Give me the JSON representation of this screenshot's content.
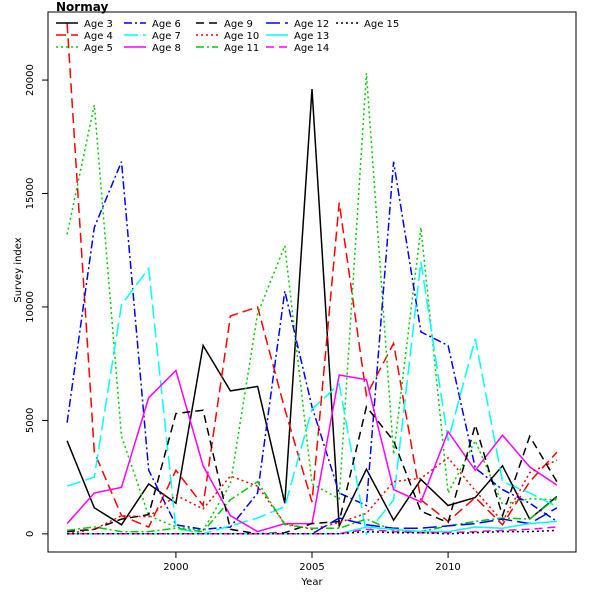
{
  "chart_data": {
    "type": "line",
    "title": "Normay",
    "xlabel": "Year",
    "ylabel": "Survey index",
    "xlim": [
      1995.3,
      2014.7
    ],
    "ylim": [
      -800,
      23000
    ],
    "xticks": [
      2000,
      2005,
      2010
    ],
    "yticks": [
      0,
      5000,
      10000,
      15000,
      20000
    ],
    "grid": false,
    "legend_position": "top-left",
    "x": [
      1996,
      1997,
      1998,
      1999,
      2000,
      2001,
      2002,
      2003,
      2004,
      2005,
      2006,
      2007,
      2008,
      2009,
      2010,
      2011,
      2012,
      2013,
      2014
    ],
    "series": [
      {
        "name": "Age 3",
        "color": "#000000",
        "dash": "",
        "values": [
          4100,
          1150,
          400,
          2200,
          1350,
          8300,
          6300,
          6500,
          1350,
          19600,
          350,
          2850,
          600,
          2400,
          1250,
          1600,
          3000,
          650,
          1650
        ]
      },
      {
        "name": "Age 4",
        "color": "#ff0000",
        "dash": "10,5",
        "values": [
          22500,
          3600,
          800,
          300,
          2800,
          1250,
          9600,
          10000,
          5500,
          1400,
          14600,
          6100,
          8400,
          1500,
          550,
          1600,
          400,
          2300,
          3600
        ]
      },
      {
        "name": "Age 5",
        "color": "#00cd00",
        "dash": "2,3",
        "values": [
          13200,
          18900,
          4300,
          800,
          300,
          150,
          2200,
          9700,
          12700,
          2200,
          1550,
          20300,
          3500,
          13500,
          1800,
          4100,
          1300,
          1550,
          1500
        ]
      },
      {
        "name": "Age 6",
        "color": "#0000ff",
        "dash": "8,3,2,3",
        "values": [
          4900,
          13500,
          16400,
          2800,
          400,
          200,
          300,
          1800,
          10700,
          5600,
          1800,
          1250,
          16400,
          8900,
          8300,
          2900,
          1950,
          1350,
          550
        ]
      },
      {
        "name": "Age 7",
        "color": "#00ffff",
        "dash": "14,5",
        "values": [
          2100,
          2500,
          10100,
          11700,
          250,
          0,
          350,
          700,
          1200,
          5500,
          6600,
          0,
          1500,
          12000,
          4100,
          8600,
          2300,
          1800,
          1200
        ]
      },
      {
        "name": "Age 8",
        "color": "#ff00ff",
        "dash": "",
        "values": [
          450,
          1800,
          2050,
          6000,
          7200,
          3000,
          800,
          100,
          450,
          450,
          7000,
          6800,
          1950,
          1400,
          4500,
          2800,
          4350,
          2950,
          2150
        ]
      },
      {
        "name": "Age 9",
        "color": "#000000",
        "dash": "8,5",
        "values": [
          100,
          200,
          650,
          850,
          5300,
          5450,
          200,
          0,
          50,
          450,
          550,
          5600,
          4100,
          1000,
          500,
          4800,
          800,
          4300,
          2300
        ]
      },
      {
        "name": "Age 10",
        "color": "#ff0000",
        "dash": "2,3",
        "values": [
          0,
          200,
          800,
          750,
          1700,
          1100,
          2550,
          2100,
          450,
          200,
          500,
          900,
          2300,
          2450,
          3350,
          1900,
          550,
          2700,
          3250
        ]
      },
      {
        "name": "Age 11",
        "color": "#00cd00",
        "dash": "8,3,2,3",
        "values": [
          150,
          300,
          100,
          100,
          250,
          100,
          1500,
          2300,
          400,
          250,
          250,
          650,
          150,
          100,
          350,
          550,
          700,
          650,
          1600
        ]
      },
      {
        "name": "Age 12",
        "color": "#0000ff",
        "dash": "14,5",
        "values": [
          0,
          0,
          0,
          0,
          0,
          0,
          0,
          0,
          0,
          0,
          700,
          400,
          250,
          250,
          350,
          450,
          650,
          450,
          1150
        ]
      },
      {
        "name": "Age 13",
        "color": "#00ffff",
        "dash": "",
        "values": [
          0,
          0,
          0,
          0,
          0,
          0,
          0,
          0,
          0,
          0,
          0,
          300,
          200,
          100,
          100,
          300,
          250,
          450,
          550
        ]
      },
      {
        "name": "Age 14",
        "color": "#ff00ff",
        "dash": "8,5",
        "values": [
          0,
          0,
          0,
          0,
          0,
          0,
          0,
          0,
          0,
          0,
          0,
          200,
          100,
          50,
          50,
          100,
          150,
          200,
          300
        ]
      },
      {
        "name": "Age 15",
        "color": "#000000",
        "dash": "2,3",
        "values": [
          0,
          0,
          0,
          0,
          0,
          0,
          0,
          0,
          0,
          0,
          0,
          100,
          50,
          50,
          0,
          50,
          100,
          100,
          150
        ]
      }
    ]
  }
}
